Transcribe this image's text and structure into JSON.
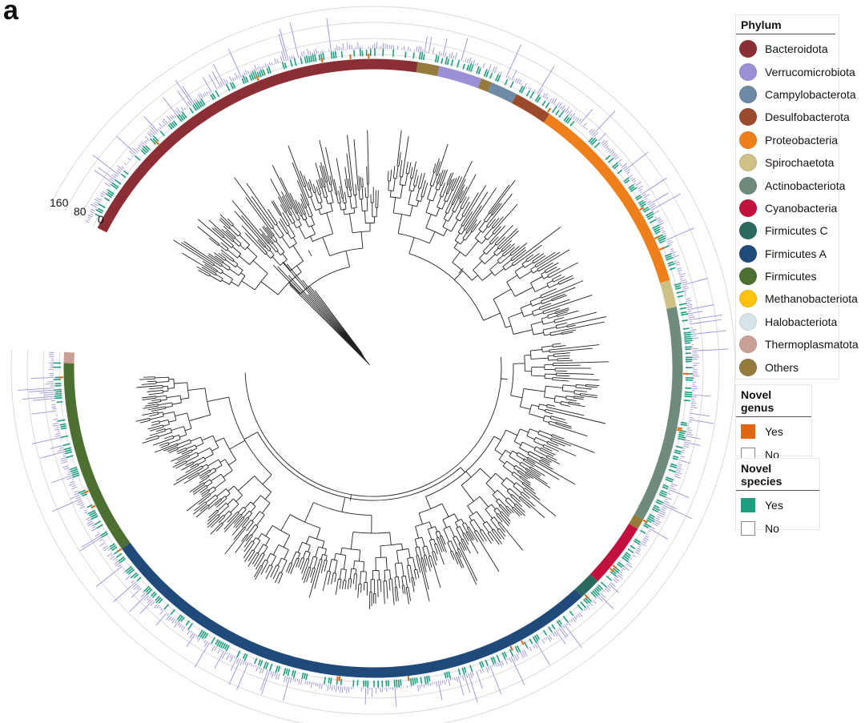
{
  "figure": {
    "panel_label": "a"
  },
  "scale": {
    "ticks": [
      "160",
      "80",
      "0"
    ]
  },
  "legend": {
    "phylum": {
      "title": "Phylum",
      "items": [
        {
          "label": "Bacteroidota",
          "color": "#8B2E35"
        },
        {
          "label": "Verrucomicrobiota",
          "color": "#9B8FD6"
        },
        {
          "label": "Campylobacterota",
          "color": "#6F8AA5"
        },
        {
          "label": "Desulfobacterota",
          "color": "#9B4A2C"
        },
        {
          "label": "Proteobacteria",
          "color": "#EF7F1A"
        },
        {
          "label": "Spirochaetota",
          "color": "#CFC186"
        },
        {
          "label": "Actinobacteriota",
          "color": "#6E8B7B"
        },
        {
          "label": "Cyanobacteria",
          "color": "#C4103C"
        },
        {
          "label": "Firmicutes C",
          "color": "#2B6A5E"
        },
        {
          "label": "Firmicutes A",
          "color": "#1F4A79"
        },
        {
          "label": "Firmicutes",
          "color": "#4B7031"
        },
        {
          "label": "Methanobacteriota",
          "color": "#FFC20E"
        },
        {
          "label": "Halobacteriota",
          "color": "#D5E4EA"
        },
        {
          "label": "Thermoplasmatota",
          "color": "#C9A097"
        },
        {
          "label": "Others",
          "color": "#947A3D"
        }
      ]
    },
    "novel_genus": {
      "title": "Novel genus",
      "items": [
        {
          "label": "Yes",
          "color": "#E0660F"
        },
        {
          "label": "No",
          "color": "#FFFFFF"
        }
      ]
    },
    "novel_species": {
      "title": "Novel species",
      "items": [
        {
          "label": "Yes",
          "color": "#1E9E7E"
        },
        {
          "label": "No",
          "color": "#FFFFFF"
        }
      ]
    }
  },
  "colors": {
    "branch": "#222222",
    "bar": "#8F84D2",
    "guide_ring": "#D9D9D9"
  },
  "chart_data": {
    "type": "circular-phylogenetic-tree",
    "phylum_ring_order_clockwise": [
      "Bacteroidota",
      "Others",
      "Verrucomicrobiota",
      "Others",
      "Campylobacterota",
      "Desulfobacterota",
      "Proteobacteria",
      "Spirochaetota",
      "Actinobacteriota",
      "Others",
      "Cyanobacteria",
      "Firmicutes C",
      "Firmicutes A",
      "Firmicutes",
      "Thermoplasmatota"
    ],
    "outer_bar_scale": [
      0,
      80,
      160
    ]
  }
}
